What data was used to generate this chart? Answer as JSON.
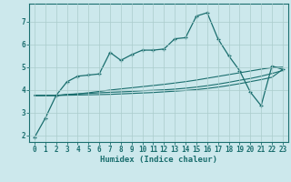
{
  "xlabel": "Humidex (Indice chaleur)",
  "background_color": "#cce8ec",
  "grid_color": "#aacccc",
  "line_color": "#1a6e6e",
  "xlim": [
    -0.5,
    23.5
  ],
  "ylim": [
    1.7,
    7.8
  ],
  "xticks": [
    0,
    1,
    2,
    3,
    4,
    5,
    6,
    7,
    8,
    9,
    10,
    11,
    12,
    13,
    14,
    15,
    16,
    17,
    18,
    19,
    20,
    21,
    22,
    23
  ],
  "yticks": [
    2,
    3,
    4,
    5,
    6,
    7
  ],
  "line1_x": [
    0,
    1,
    2,
    3,
    4,
    5,
    6,
    7,
    8,
    9,
    10,
    11,
    12,
    13,
    14,
    15,
    16,
    17,
    18,
    19,
    20,
    21,
    22,
    23
  ],
  "line1_y": [
    1.9,
    2.75,
    3.75,
    4.35,
    4.6,
    4.65,
    4.7,
    5.65,
    5.3,
    5.55,
    5.75,
    5.75,
    5.8,
    6.25,
    6.3,
    7.25,
    7.4,
    6.25,
    5.5,
    4.85,
    3.9,
    3.3,
    5.05,
    4.9
  ],
  "line2_x": [
    0,
    1,
    2,
    3,
    4,
    5,
    6,
    7,
    8,
    9,
    10,
    11,
    12,
    13,
    14,
    15,
    16,
    17,
    18,
    19,
    20,
    21,
    22,
    23
  ],
  "line2_y": [
    3.75,
    3.75,
    3.75,
    3.8,
    3.82,
    3.84,
    3.87,
    3.89,
    3.91,
    3.93,
    3.96,
    3.98,
    4.0,
    4.03,
    4.07,
    4.12,
    4.18,
    4.25,
    4.33,
    4.42,
    4.5,
    4.6,
    4.72,
    4.85
  ],
  "line3_x": [
    0,
    1,
    2,
    3,
    4,
    5,
    6,
    7,
    8,
    9,
    10,
    11,
    12,
    13,
    14,
    15,
    16,
    17,
    18,
    19,
    20,
    21,
    22,
    23
  ],
  "line3_y": [
    3.75,
    3.75,
    3.75,
    3.78,
    3.82,
    3.87,
    3.93,
    3.99,
    4.04,
    4.09,
    4.14,
    4.19,
    4.24,
    4.3,
    4.36,
    4.43,
    4.51,
    4.59,
    4.67,
    4.75,
    4.83,
    4.91,
    4.98,
    5.0
  ],
  "line4_x": [
    0,
    1,
    2,
    3,
    4,
    5,
    6,
    7,
    8,
    9,
    10,
    11,
    12,
    13,
    14,
    15,
    16,
    17,
    18,
    19,
    20,
    21,
    22,
    23
  ],
  "line4_y": [
    3.75,
    3.75,
    3.75,
    3.76,
    3.77,
    3.78,
    3.79,
    3.8,
    3.82,
    3.84,
    3.86,
    3.88,
    3.91,
    3.94,
    3.97,
    4.01,
    4.06,
    4.12,
    4.19,
    4.27,
    4.36,
    4.45,
    4.55,
    4.9
  ],
  "tick_fontsize": 5.5,
  "label_fontsize": 6.5
}
